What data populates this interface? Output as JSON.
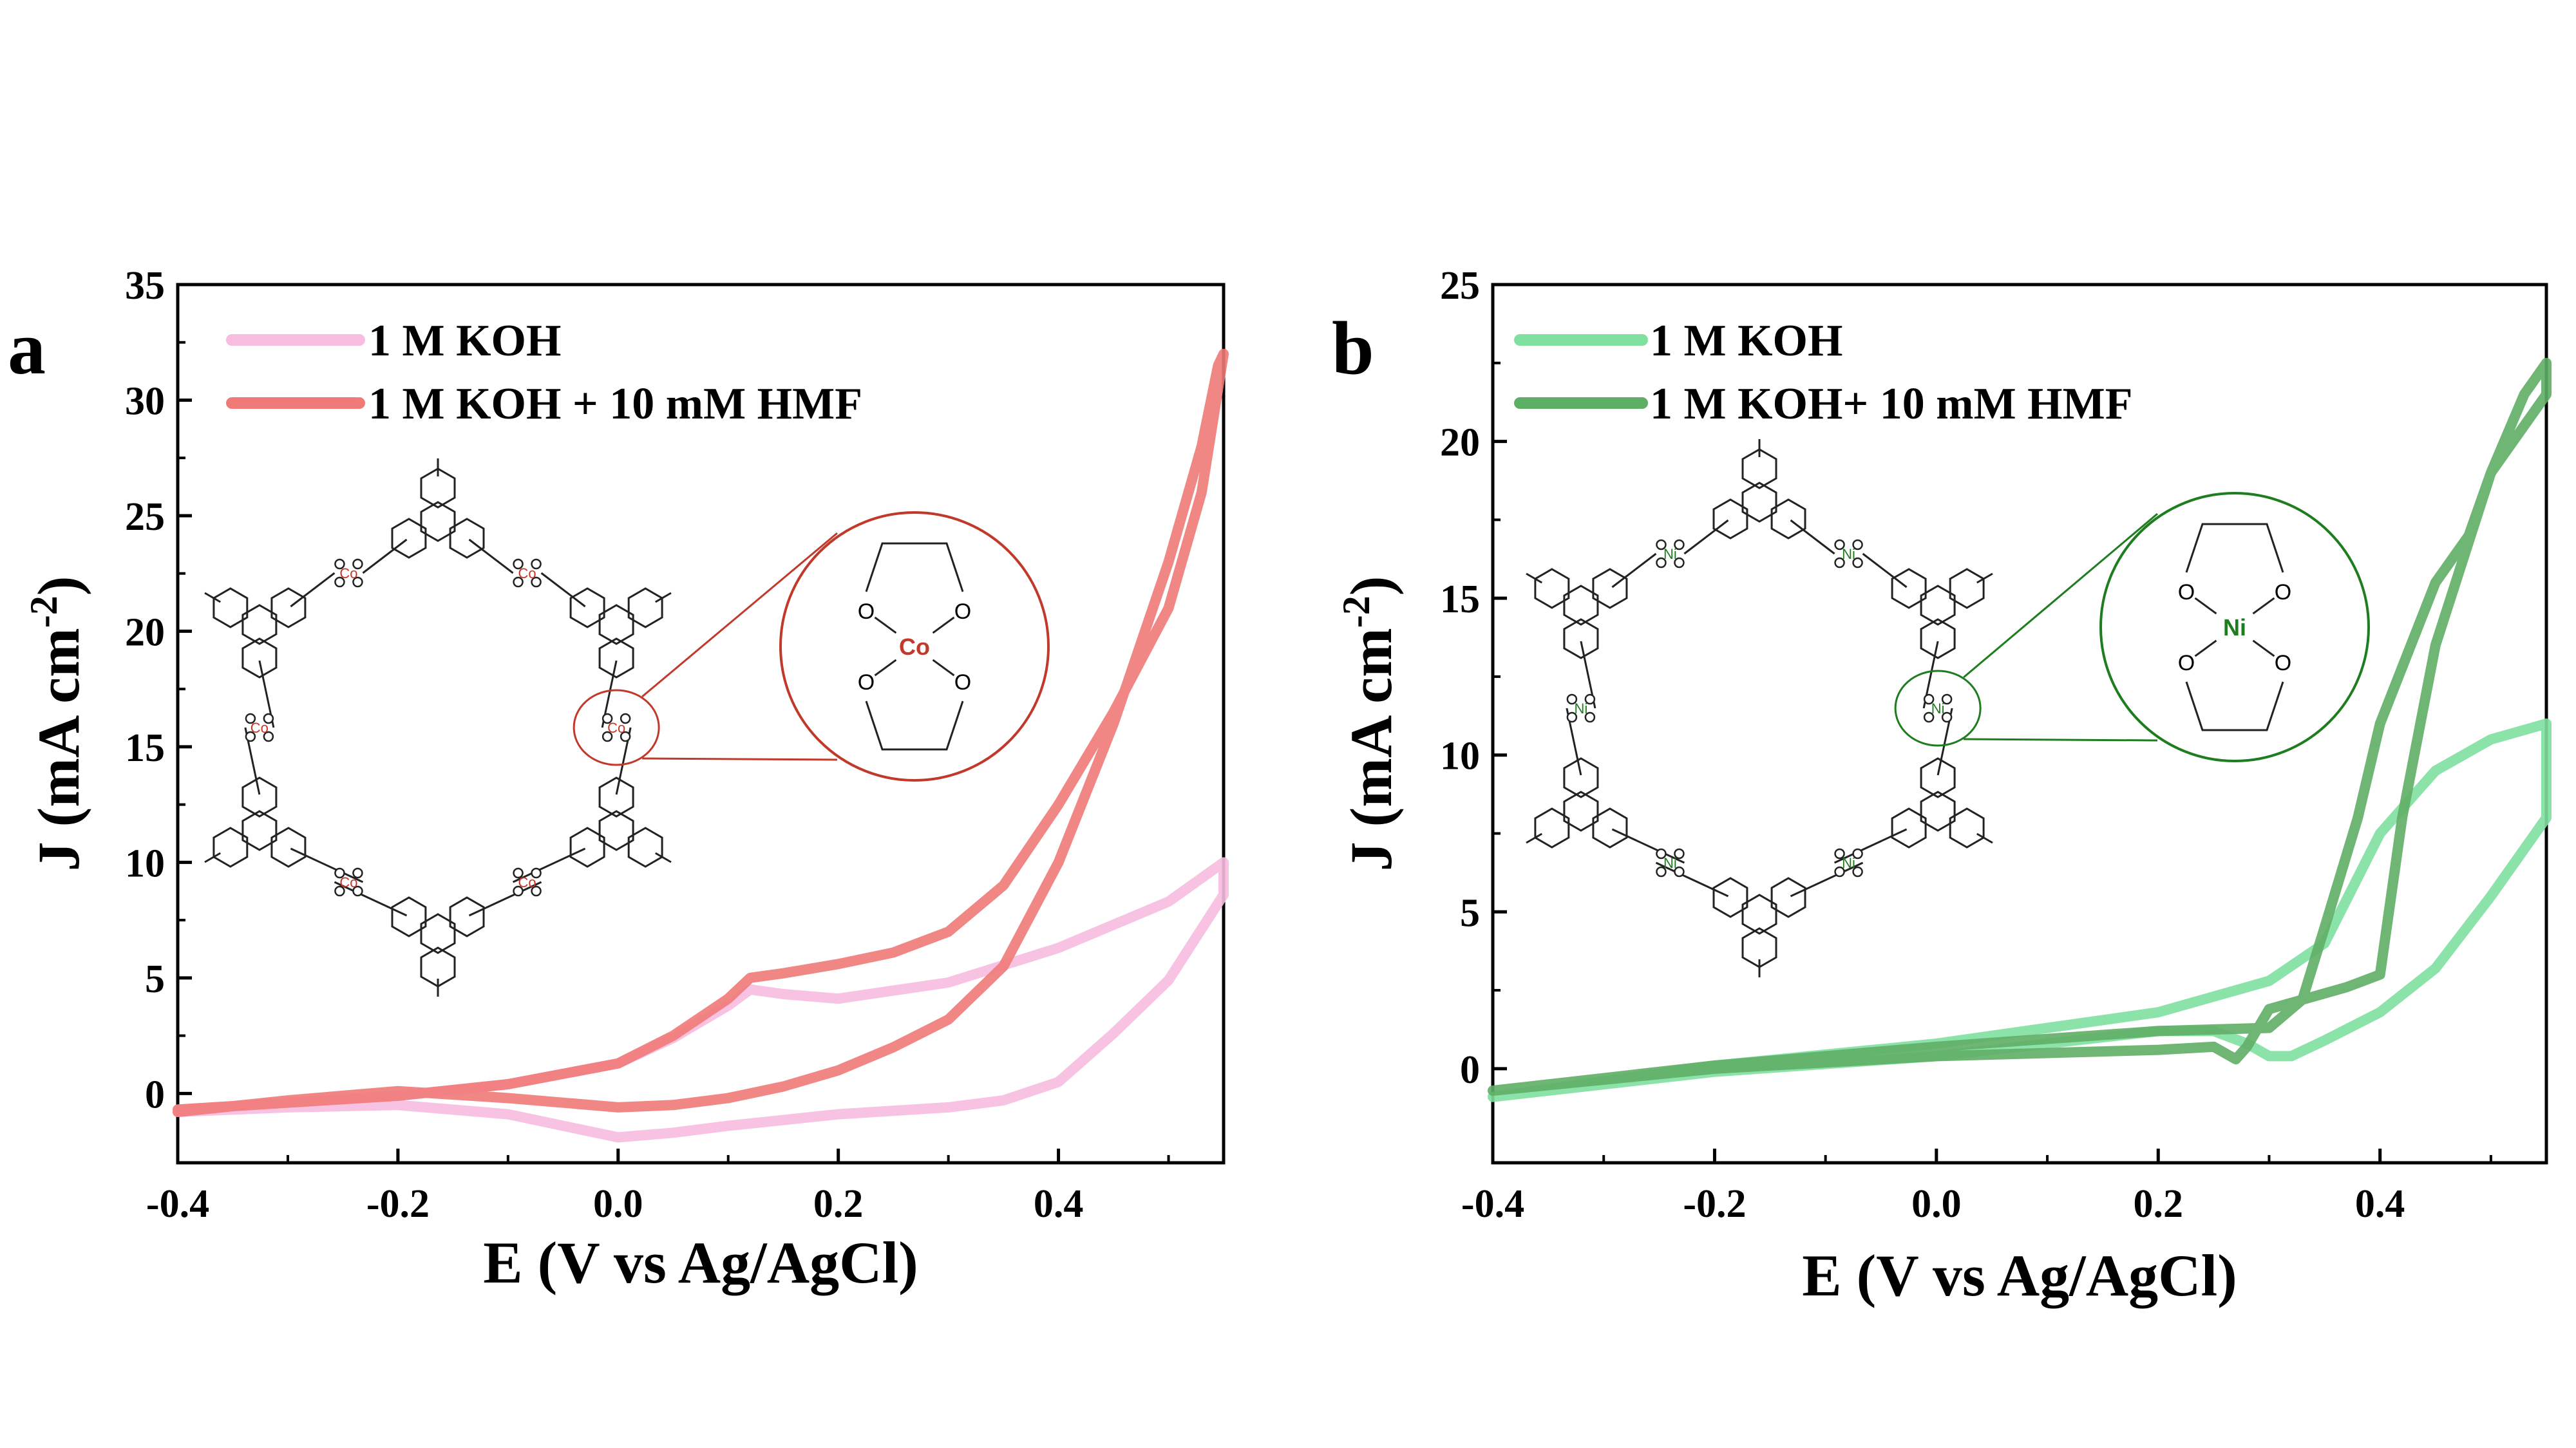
{
  "chart_data": [
    {
      "type": "line",
      "panel_label": "a",
      "title": "",
      "xlabel": "E (V vs Ag/AgCl)",
      "ylabel_main": "J (mA cm",
      "ylabel_sup": "-2",
      "ylabel_close": ")",
      "xlim": [
        -0.4,
        0.55
      ],
      "ylim": [
        -3,
        35
      ],
      "xticks": [
        -0.4,
        -0.2,
        0.0,
        0.2,
        0.4
      ],
      "xtick_labels": [
        "-0.4",
        "-0.2",
        "0.0",
        "0.2",
        "0.4"
      ],
      "yticks": [
        0,
        5,
        10,
        15,
        20,
        25,
        30,
        35
      ],
      "ytick_labels": [
        "0",
        "5",
        "10",
        "15",
        "20",
        "25",
        "30",
        "35"
      ],
      "legend_position": "top-left",
      "metal_label": "Co",
      "colors": {
        "metal": "#c0392b"
      },
      "series": [
        {
          "name": "1 M KOH",
          "color": "#f7bde0",
          "x": [
            -0.4,
            -0.3,
            -0.2,
            -0.1,
            0.0,
            0.05,
            0.1,
            0.12,
            0.15,
            0.2,
            0.3,
            0.4,
            0.5,
            0.55,
            0.55,
            0.5,
            0.45,
            0.4,
            0.35,
            0.3,
            0.2,
            0.1,
            0.05,
            0.0,
            -0.05,
            -0.1,
            -0.2,
            -0.3,
            -0.4
          ],
          "y": [
            -0.7,
            -0.4,
            -0.1,
            0.4,
            1.3,
            2.4,
            3.8,
            4.5,
            4.3,
            4.1,
            4.8,
            6.3,
            8.3,
            10.0,
            8.6,
            4.9,
            2.6,
            0.5,
            -0.3,
            -0.6,
            -0.9,
            -1.4,
            -1.7,
            -1.9,
            -1.4,
            -0.9,
            -0.5,
            -0.6,
            -0.8
          ]
        },
        {
          "name": "1 M KOH + 10 mM HMF",
          "color": "#f07a78",
          "x": [
            -0.4,
            -0.3,
            -0.2,
            -0.1,
            0.0,
            0.05,
            0.1,
            0.12,
            0.15,
            0.2,
            0.25,
            0.3,
            0.35,
            0.4,
            0.45,
            0.5,
            0.53,
            0.55,
            0.545,
            0.53,
            0.5,
            0.45,
            0.4,
            0.35,
            0.3,
            0.25,
            0.2,
            0.15,
            0.1,
            0.05,
            0.0,
            -0.05,
            -0.1,
            -0.2,
            -0.3,
            -0.4
          ],
          "y": [
            -0.7,
            -0.4,
            -0.1,
            0.4,
            1.3,
            2.5,
            4.1,
            5.0,
            5.2,
            5.6,
            6.1,
            7.0,
            9.0,
            12.5,
            16.5,
            21.0,
            26.0,
            32.0,
            31.5,
            28.0,
            23.0,
            16.0,
            10.0,
            5.5,
            3.2,
            2.0,
            1.0,
            0.3,
            -0.2,
            -0.5,
            -0.6,
            -0.4,
            -0.2,
            0.1,
            -0.3,
            -0.8
          ]
        }
      ]
    },
    {
      "type": "line",
      "panel_label": "b",
      "title": "",
      "xlabel": "E (V vs Ag/AgCl)",
      "ylabel_main": "J (mA cm",
      "ylabel_sup": "-2",
      "ylabel_close": ")",
      "xlim": [
        -0.4,
        0.55
      ],
      "ylim": [
        -3,
        25
      ],
      "xticks": [
        -0.4,
        -0.2,
        0.0,
        0.2,
        0.4
      ],
      "xtick_labels": [
        "-0.4",
        "-0.2",
        "0.0",
        "0.2",
        "0.4"
      ],
      "yticks": [
        0,
        5,
        10,
        15,
        20,
        25
      ],
      "ytick_labels": [
        "0",
        "5",
        "10",
        "15",
        "20",
        "25"
      ],
      "legend_position": "top-left",
      "metal_label": "Ni",
      "colors": {
        "metal": "#1e7d1e"
      },
      "series": [
        {
          "name": "1 M KOH",
          "color": "#7fe0a0",
          "x": [
            -0.4,
            -0.2,
            0.0,
            0.2,
            0.3,
            0.35,
            0.4,
            0.45,
            0.5,
            0.55,
            0.55,
            0.5,
            0.45,
            0.4,
            0.35,
            0.32,
            0.3,
            0.28,
            0.25,
            0.2,
            0.0,
            -0.2,
            -0.4
          ],
          "y": [
            -0.9,
            0.1,
            0.8,
            1.8,
            2.8,
            4.0,
            7.5,
            9.5,
            10.5,
            11.0,
            8.0,
            5.5,
            3.2,
            1.8,
            0.9,
            0.4,
            0.4,
            0.8,
            1.2,
            1.2,
            0.4,
            -0.1,
            -0.9
          ]
        },
        {
          "name": "1 M KOH+ 10 mM HMF",
          "color": "#5fae66",
          "x": [
            -0.4,
            -0.2,
            0.0,
            0.2,
            0.3,
            0.33,
            0.35,
            0.38,
            0.4,
            0.45,
            0.48,
            0.5,
            0.53,
            0.55,
            0.55,
            0.5,
            0.45,
            0.42,
            0.4,
            0.37,
            0.35,
            0.32,
            0.3,
            0.28,
            0.27,
            0.25,
            0.2,
            0.0,
            -0.2,
            -0.4
          ],
          "y": [
            -0.7,
            0.1,
            0.7,
            1.2,
            1.3,
            2.2,
            4.5,
            8.0,
            11.0,
            15.5,
            17.0,
            19.0,
            21.5,
            22.5,
            21.5,
            19.0,
            13.5,
            8.0,
            3.0,
            2.6,
            2.4,
            2.1,
            1.9,
            0.7,
            0.3,
            0.7,
            0.6,
            0.4,
            0.0,
            -0.7
          ]
        }
      ]
    }
  ]
}
